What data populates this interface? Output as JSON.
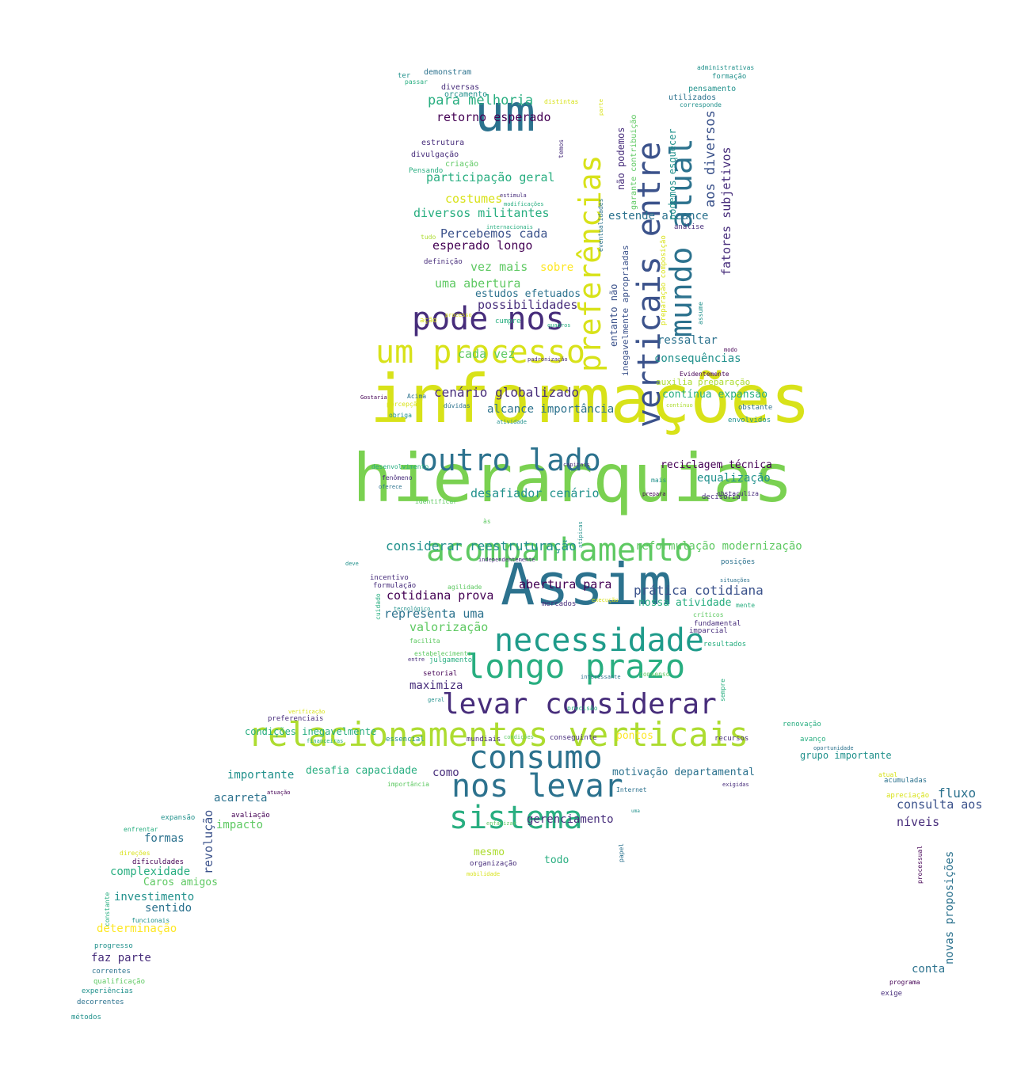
{
  "palette": {
    "c0": "#440154",
    "c1": "#472d7b",
    "c2": "#3b528b",
    "c3": "#2c728e",
    "c4": "#21918c",
    "c5": "#28ae80",
    "c6": "#5ec962",
    "c7": "#addc30",
    "c8": "#fde725",
    "c9": "#1e9b8a",
    "ca": "#d8e219",
    "cb": "#7ad151"
  },
  "words": [
    {
      "text": "informações",
      "color": "ca"
    },
    {
      "text": "hierarquias",
      "color": "cb"
    },
    {
      "text": "Assim",
      "color": "c3"
    },
    {
      "text": "um",
      "color": "c3"
    },
    {
      "text": "relacionamentos verticais",
      "color": "c7"
    },
    {
      "text": "acompanhamento",
      "color": "c6"
    },
    {
      "text": "um processo",
      "color": "ca"
    },
    {
      "text": "pode nos",
      "color": "c1"
    },
    {
      "text": "outro lado",
      "color": "c3"
    },
    {
      "text": "necessidade",
      "color": "c9"
    },
    {
      "text": "longo prazo",
      "color": "c5"
    },
    {
      "text": "consumo",
      "color": "c3"
    },
    {
      "text": "levar considerar",
      "color": "c1"
    },
    {
      "text": "nos levar",
      "color": "c3"
    },
    {
      "text": "sistema",
      "color": "c5"
    },
    {
      "text": "verticais entre",
      "color": "c2"
    },
    {
      "text": "preferências",
      "color": "ca"
    },
    {
      "text": "mundo atual",
      "color": "c3"
    },
    {
      "text": "aos diversos",
      "color": "c2"
    },
    {
      "text": "fatores subjetivos",
      "color": "c1"
    },
    {
      "text": "para melhoria",
      "color": "c5"
    },
    {
      "text": "retorno esperado",
      "color": "c0"
    },
    {
      "text": "participação geral",
      "color": "c5"
    },
    {
      "text": "costumes",
      "color": "ca"
    },
    {
      "text": "diversos militantes",
      "color": "c5"
    },
    {
      "text": "Percebemos cada",
      "color": "c2"
    },
    {
      "text": "esperado longo",
      "color": "c0"
    },
    {
      "text": "vez mais",
      "color": "c6"
    },
    {
      "text": "sobre",
      "color": "c8"
    },
    {
      "text": "uma abertura",
      "color": "c6"
    },
    {
      "text": "estudos efetuados",
      "color": "c3"
    },
    {
      "text": "possibilidades",
      "color": "c1"
    },
    {
      "text": "cada vez",
      "color": "c6"
    },
    {
      "text": "cenário globalizado",
      "color": "c1"
    },
    {
      "text": "alcance importância",
      "color": "c3"
    },
    {
      "text": "estende alcance",
      "color": "c3"
    },
    {
      "text": "ressaltar",
      "color": "c3"
    },
    {
      "text": "consequências",
      "color": "c4"
    },
    {
      "text": "auxilia preparação",
      "color": "c7"
    },
    {
      "text": "contínua expansão",
      "color": "c5"
    },
    {
      "text": "reciclagem técnica",
      "color": "c0"
    },
    {
      "text": "equalização",
      "color": "c4"
    },
    {
      "text": "desafiador cenário",
      "color": "c4"
    },
    {
      "text": "considerar reestruturação",
      "color": "c4"
    },
    {
      "text": "reformulação modernização",
      "color": "c6"
    },
    {
      "text": "abertura para",
      "color": "c0"
    },
    {
      "text": "prática cotidiana",
      "color": "c2"
    },
    {
      "text": "cotidiana prova",
      "color": "c0"
    },
    {
      "text": "nossa atividade",
      "color": "c5"
    },
    {
      "text": "representa uma",
      "color": "c3"
    },
    {
      "text": "valorização",
      "color": "c6"
    },
    {
      "text": "maximiza",
      "color": "c1"
    },
    {
      "text": "fluxo",
      "color": "c3"
    },
    {
      "text": "consulta aos",
      "color": "c2"
    },
    {
      "text": "níveis",
      "color": "c1"
    },
    {
      "text": "grupo importante",
      "color": "c4"
    },
    {
      "text": "desafia capacidade",
      "color": "c5"
    },
    {
      "text": "importante",
      "color": "c4"
    },
    {
      "text": "como",
      "color": "c1"
    },
    {
      "text": "motivação departamental",
      "color": "c3"
    },
    {
      "text": "acarreta",
      "color": "c3"
    },
    {
      "text": "revolução",
      "color": "c2"
    },
    {
      "text": "impacto",
      "color": "c6"
    },
    {
      "text": "formas",
      "color": "c3"
    },
    {
      "text": "complexidade",
      "color": "c5"
    },
    {
      "text": "Caros amigos",
      "color": "c6"
    },
    {
      "text": "investimento",
      "color": "c4"
    },
    {
      "text": "sentido",
      "color": "c3"
    },
    {
      "text": "determinação",
      "color": "c8"
    },
    {
      "text": "faz parte",
      "color": "c1"
    },
    {
      "text": "gerenciamento",
      "color": "c1"
    },
    {
      "text": "mesmo",
      "color": "c7"
    },
    {
      "text": "todo",
      "color": "c5"
    },
    {
      "text": "conta",
      "color": "c3"
    },
    {
      "text": "novas proposições",
      "color": "c3"
    },
    {
      "text": "pontos",
      "color": "c8"
    },
    {
      "text": "condições inegavelmente",
      "color": "c5"
    },
    {
      "text": "entanto não",
      "color": "c2"
    },
    {
      "text": "não podemos",
      "color": "c1"
    },
    {
      "text": "podemos esquecer",
      "color": "c4"
    },
    {
      "text": "inegavelmente apropriadas",
      "color": "c2"
    },
    {
      "text": "garante contribuição",
      "color": "c6"
    },
    {
      "text": "demonstram",
      "color": "c3"
    },
    {
      "text": "diversas",
      "color": "c1"
    },
    {
      "text": "orçamento",
      "color": "c4"
    },
    {
      "text": "estrutura",
      "color": "c1"
    },
    {
      "text": "divulgação",
      "color": "c1"
    },
    {
      "text": "criação",
      "color": "c6"
    },
    {
      "text": "Pensando",
      "color": "c5"
    },
    {
      "text": "definição",
      "color": "c1"
    },
    {
      "text": "ação",
      "color": "ca"
    },
    {
      "text": "cumpre",
      "color": "c5"
    },
    {
      "text": "utilizados",
      "color": "c3"
    },
    {
      "text": "pensamento",
      "color": "c4"
    },
    {
      "text": "formação",
      "color": "c4"
    },
    {
      "text": "análise",
      "color": "c1"
    },
    {
      "text": "obstante",
      "color": "c3"
    },
    {
      "text": "envolvidos",
      "color": "c4"
    },
    {
      "text": "decisória",
      "color": "c1"
    },
    {
      "text": "posições",
      "color": "c3"
    },
    {
      "text": "fundamental",
      "color": "c1"
    },
    {
      "text": "imparcial",
      "color": "c1"
    },
    {
      "text": "resultados",
      "color": "c5"
    },
    {
      "text": "mercados",
      "color": "c1"
    },
    {
      "text": "setorial",
      "color": "c0"
    },
    {
      "text": "julgamento",
      "color": "c5"
    },
    {
      "text": "formulação",
      "color": "c1"
    },
    {
      "text": "incentivo",
      "color": "c1"
    },
    {
      "text": "preferenciais",
      "color": "c1"
    },
    {
      "text": "essencial",
      "color": "c4"
    },
    {
      "text": "mundiais",
      "color": "c1"
    },
    {
      "text": "conseguinte",
      "color": "c1"
    },
    {
      "text": "recursos",
      "color": "c1"
    },
    {
      "text": "renovação",
      "color": "c5"
    },
    {
      "text": "avanço",
      "color": "c5"
    },
    {
      "text": "acumuladas",
      "color": "c3"
    },
    {
      "text": "apreciação",
      "color": "ca"
    },
    {
      "text": "expansão",
      "color": "c4"
    },
    {
      "text": "avaliação",
      "color": "c0"
    },
    {
      "text": "dificuldades",
      "color": "c0"
    },
    {
      "text": "progresso",
      "color": "c4"
    },
    {
      "text": "correntes",
      "color": "c3"
    },
    {
      "text": "qualificação",
      "color": "c6"
    },
    {
      "text": "experiências",
      "color": "c4"
    },
    {
      "text": "decorrentes",
      "color": "c3"
    },
    {
      "text": "métodos",
      "color": "c4"
    },
    {
      "text": "organização",
      "color": "c1"
    },
    {
      "text": "exige",
      "color": "c1"
    },
    {
      "text": "programa",
      "color": "c0"
    },
    {
      "text": "constante",
      "color": "c5"
    },
    {
      "text": "processual",
      "color": "c0"
    },
    {
      "text": "sempre",
      "color": "c5"
    },
    {
      "text": "papel",
      "color": "c3"
    },
    {
      "text": "cuidado",
      "color": "c5"
    },
    {
      "text": "administrativas",
      "color": "c4"
    },
    {
      "text": "ter",
      "color": "c4"
    },
    {
      "text": "passar",
      "color": "c5"
    },
    {
      "text": "distintas",
      "color": "ca"
    },
    {
      "text": "temos",
      "color": "c1"
    },
    {
      "text": "parte",
      "color": "ca"
    },
    {
      "text": "corresponde",
      "color": "c4"
    },
    {
      "text": "estimula",
      "color": "c1"
    },
    {
      "text": "modificações",
      "color": "c5"
    },
    {
      "text": "internacionais",
      "color": "c5"
    },
    {
      "text": "tudo",
      "color": "c7"
    },
    {
      "text": "processo",
      "color": "ca"
    },
    {
      "text": "quadros",
      "color": "c5"
    },
    {
      "text": "padronização",
      "color": "c1"
    },
    {
      "text": "eventualidades",
      "color": "c3"
    },
    {
      "text": "preparação composição",
      "color": "ca"
    },
    {
      "text": "assume",
      "color": "c4"
    },
    {
      "text": "modo",
      "color": "c0"
    },
    {
      "text": "Evidentemente",
      "color": "c0"
    },
    {
      "text": "Gostaria",
      "color": "c0"
    },
    {
      "text": "Acima",
      "color": "c3"
    },
    {
      "text": "percepção",
      "color": "ca"
    },
    {
      "text": "obriga",
      "color": "c4"
    },
    {
      "text": "dúvidas",
      "color": "c3"
    },
    {
      "text": "atividade",
      "color": "c4"
    },
    {
      "text": "contínuo",
      "color": "c7"
    },
    {
      "text": "desenvolvimento",
      "color": "c5"
    },
    {
      "text": "capitais",
      "color": "c1"
    },
    {
      "text": "fenômeno",
      "color": "c1"
    },
    {
      "text": "oferece",
      "color": "c3"
    },
    {
      "text": "identificar",
      "color": "c6"
    },
    {
      "text": "mais",
      "color": "c4"
    },
    {
      "text": "prepara",
      "color": "c0"
    },
    {
      "text": "obstaculiza",
      "color": "c1"
    },
    {
      "text": "às",
      "color": "c6"
    },
    {
      "text": "atípicas",
      "color": "c4"
    },
    {
      "text": "independentemente",
      "color": "c1"
    },
    {
      "text": "deve",
      "color": "c4"
    },
    {
      "text": "situações",
      "color": "c3"
    },
    {
      "text": "agilidade",
      "color": "c6"
    },
    {
      "text": "execução",
      "color": "ca"
    },
    {
      "text": "mente",
      "color": "c5"
    },
    {
      "text": "tecnológico",
      "color": "c4"
    },
    {
      "text": "críticos",
      "color": "c6"
    },
    {
      "text": "facilita",
      "color": "c6"
    },
    {
      "text": "estabelecimento",
      "color": "c6"
    },
    {
      "text": "entre",
      "color": "c1"
    },
    {
      "text": "interessante",
      "color": "c3"
    },
    {
      "text": "consenso",
      "color": "c6"
    },
    {
      "text": "geral",
      "color": "c4"
    },
    {
      "text": "precisão",
      "color": "c5"
    },
    {
      "text": "verificação",
      "color": "ca"
    },
    {
      "text": "financeiras",
      "color": "c5"
    },
    {
      "text": "condições",
      "color": "c6"
    },
    {
      "text": "oportunidade",
      "color": "c3"
    },
    {
      "text": "atual",
      "color": "ca"
    },
    {
      "text": "importância",
      "color": "c6"
    },
    {
      "text": "atuação",
      "color": "c0"
    },
    {
      "text": "Internet",
      "color": "c3"
    },
    {
      "text": "exigidas",
      "color": "c1"
    },
    {
      "text": "uma",
      "color": "c4"
    },
    {
      "text": "enfrentar",
      "color": "c5"
    },
    {
      "text": "enfatizar",
      "color": "c6"
    },
    {
      "text": "direções",
      "color": "ca"
    },
    {
      "text": "funcionais",
      "color": "c4"
    },
    {
      "text": "mobilidade",
      "color": "ca"
    }
  ]
}
